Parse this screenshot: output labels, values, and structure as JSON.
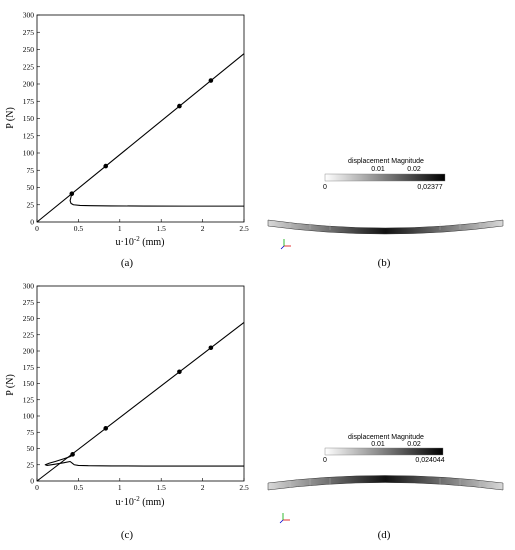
{
  "chart_data": [
    {
      "type": "line",
      "caption": "(a)",
      "xlabel": "u·10",
      "xlabel_exp": "-2",
      "xlabel_unit": " (mm)",
      "ylabel": "P (N)",
      "xlim": [
        0,
        2.5
      ],
      "ylim": [
        0,
        300
      ],
      "xticks": [
        "0",
        "0.5",
        "1",
        "1.5",
        "2",
        "2.5"
      ],
      "yticks": [
        "0",
        "25",
        "50",
        "75",
        "100",
        "125",
        "150",
        "175",
        "200",
        "225",
        "250",
        "275",
        "300"
      ],
      "grid": false,
      "series": [
        {
          "kind": "line",
          "x": [
            0,
            2.5
          ],
          "y": [
            0,
            244
          ]
        },
        {
          "kind": "line",
          "x": [
            0.42,
            0.41,
            0.4,
            0.41,
            0.44,
            0.52,
            0.65,
            0.9,
            1.3,
            1.8,
            2.5
          ],
          "y": [
            41,
            36,
            31,
            27,
            25,
            24,
            23.6,
            23.3,
            23.1,
            23,
            23
          ]
        },
        {
          "kind": "markers",
          "x": [
            0.42,
            0.83,
            1.72,
            2.1
          ],
          "y": [
            41,
            81,
            168,
            205
          ]
        }
      ]
    },
    {
      "type": "line",
      "caption": "(c)",
      "xlabel": "u·10",
      "xlabel_exp": "-2",
      "xlabel_unit": " (mm)",
      "ylabel": "P (N)",
      "xlim": [
        0,
        2.5
      ],
      "ylim": [
        0,
        300
      ],
      "xticks": [
        "0",
        "0.5",
        "1",
        "1.5",
        "2",
        "2.5"
      ],
      "yticks": [
        "0",
        "25",
        "50",
        "75",
        "100",
        "125",
        "150",
        "175",
        "200",
        "225",
        "250",
        "275",
        "300"
      ],
      "grid": false,
      "series": [
        {
          "kind": "line",
          "x": [
            0,
            2.5
          ],
          "y": [
            0,
            244
          ]
        },
        {
          "kind": "line",
          "x": [
            0.44,
            0.43,
            0.4,
            0.32,
            0.22,
            0.15,
            0.1,
            0.12,
            0.2,
            0.32,
            0.4,
            0.43,
            0.45,
            0.5,
            0.62,
            0.9,
            1.3,
            1.8,
            2.5
          ],
          "y": [
            42,
            40,
            37.5,
            34,
            30,
            27.5,
            25,
            24,
            25.5,
            28,
            30,
            27,
            25,
            24,
            23.5,
            23.2,
            23,
            23,
            23
          ]
        },
        {
          "kind": "markers",
          "x": [
            0.43,
            0.83,
            1.72,
            2.1
          ],
          "y": [
            41,
            81,
            168,
            205
          ]
        }
      ]
    }
  ],
  "panels": {
    "b": {
      "caption": "(b)",
      "colorbar_title": "displacement Magnitude",
      "ticks_top": [
        "0.01",
        "0.02"
      ],
      "min_label": "0",
      "max_label": "0,02377"
    },
    "d": {
      "caption": "(d)",
      "colorbar_title": "displacement Magnitude",
      "ticks_top": [
        "0.01",
        "0.02"
      ],
      "min_label": "0",
      "max_label": "0,024044"
    }
  }
}
